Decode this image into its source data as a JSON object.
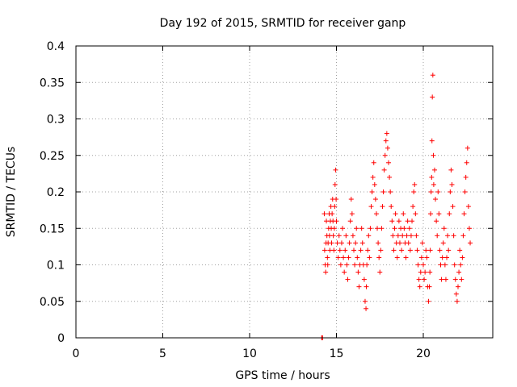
{
  "chart_data": {
    "type": "scatter",
    "title": "Day 192 of 2015, SRMTID for receiver ganp",
    "xlabel": "GPS time / hours",
    "ylabel": "SRMTID / TECUs",
    "xlim": [
      0,
      24
    ],
    "ylim": [
      0,
      0.4
    ],
    "xticks": [
      0,
      5,
      10,
      15,
      20
    ],
    "xtick_labels": [
      "0",
      "5",
      "10",
      "15",
      "20"
    ],
    "yticks": [
      0,
      0.05,
      0.1,
      0.15,
      0.2,
      0.25,
      0.3,
      0.35,
      0.4
    ],
    "ytick_labels": [
      "0",
      "0.05",
      "0.1",
      "0.15",
      "0.2",
      "0.25",
      "0.3",
      "0.35",
      "0.4"
    ],
    "grid": true,
    "marker": "plus",
    "series_color": "#ff0000",
    "series": [
      {
        "name": "SRMTID",
        "points": [
          [
            14.15,
            0.0
          ],
          [
            14.18,
            0.0
          ],
          [
            14.2,
            0.0
          ],
          [
            14.3,
            0.17
          ],
          [
            14.32,
            0.12
          ],
          [
            14.35,
            0.1
          ],
          [
            14.38,
            0.09
          ],
          [
            14.4,
            0.13
          ],
          [
            14.42,
            0.16
          ],
          [
            14.45,
            0.14
          ],
          [
            14.48,
            0.11
          ],
          [
            14.5,
            0.1
          ],
          [
            14.52,
            0.13
          ],
          [
            14.55,
            0.15
          ],
          [
            14.58,
            0.17
          ],
          [
            14.6,
            0.14
          ],
          [
            14.62,
            0.12
          ],
          [
            14.65,
            0.16
          ],
          [
            14.68,
            0.18
          ],
          [
            14.7,
            0.15
          ],
          [
            14.72,
            0.13
          ],
          [
            14.75,
            0.17
          ],
          [
            14.78,
            0.19
          ],
          [
            14.8,
            0.16
          ],
          [
            14.82,
            0.14
          ],
          [
            14.85,
            0.12
          ],
          [
            14.88,
            0.15
          ],
          [
            14.9,
            0.18
          ],
          [
            14.92,
            0.21
          ],
          [
            14.95,
            0.23
          ],
          [
            14.98,
            0.19
          ],
          [
            15.0,
            0.16
          ],
          [
            15.05,
            0.13
          ],
          [
            15.1,
            0.11
          ],
          [
            15.15,
            0.14
          ],
          [
            15.2,
            0.12
          ],
          [
            15.25,
            0.1
          ],
          [
            15.3,
            0.13
          ],
          [
            15.35,
            0.15
          ],
          [
            15.4,
            0.11
          ],
          [
            15.45,
            0.09
          ],
          [
            15.5,
            0.12
          ],
          [
            15.55,
            0.14
          ],
          [
            15.6,
            0.1
          ],
          [
            15.65,
            0.08
          ],
          [
            15.7,
            0.11
          ],
          [
            15.75,
            0.13
          ],
          [
            15.8,
            0.16
          ],
          [
            15.85,
            0.19
          ],
          [
            15.9,
            0.17
          ],
          [
            15.95,
            0.14
          ],
          [
            16.0,
            0.12
          ],
          [
            16.05,
            0.1
          ],
          [
            16.1,
            0.13
          ],
          [
            16.15,
            0.15
          ],
          [
            16.2,
            0.11
          ],
          [
            16.25,
            0.09
          ],
          [
            16.3,
            0.07
          ],
          [
            16.35,
            0.1
          ],
          [
            16.4,
            0.12
          ],
          [
            16.45,
            0.15
          ],
          [
            16.5,
            0.13
          ],
          [
            16.55,
            0.1
          ],
          [
            16.6,
            0.08
          ],
          [
            16.65,
            0.05
          ],
          [
            16.7,
            0.04
          ],
          [
            16.72,
            0.07
          ],
          [
            16.75,
            0.1
          ],
          [
            16.8,
            0.12
          ],
          [
            16.85,
            0.14
          ],
          [
            16.9,
            0.11
          ],
          [
            16.95,
            0.15
          ],
          [
            17.0,
            0.18
          ],
          [
            17.05,
            0.2
          ],
          [
            17.1,
            0.22
          ],
          [
            17.15,
            0.24
          ],
          [
            17.2,
            0.21
          ],
          [
            17.25,
            0.19
          ],
          [
            17.3,
            0.17
          ],
          [
            17.35,
            0.15
          ],
          [
            17.4,
            0.13
          ],
          [
            17.45,
            0.11
          ],
          [
            17.5,
            0.09
          ],
          [
            17.55,
            0.12
          ],
          [
            17.6,
            0.15
          ],
          [
            17.65,
            0.18
          ],
          [
            17.7,
            0.2
          ],
          [
            17.75,
            0.23
          ],
          [
            17.8,
            0.25
          ],
          [
            17.85,
            0.27
          ],
          [
            17.9,
            0.28
          ],
          [
            17.95,
            0.26
          ],
          [
            18.0,
            0.24
          ],
          [
            18.05,
            0.22
          ],
          [
            18.1,
            0.2
          ],
          [
            18.15,
            0.18
          ],
          [
            18.2,
            0.16
          ],
          [
            18.25,
            0.14
          ],
          [
            18.3,
            0.12
          ],
          [
            18.35,
            0.15
          ],
          [
            18.4,
            0.17
          ],
          [
            18.45,
            0.13
          ],
          [
            18.5,
            0.11
          ],
          [
            18.55,
            0.14
          ],
          [
            18.6,
            0.16
          ],
          [
            18.65,
            0.13
          ],
          [
            18.7,
            0.15
          ],
          [
            18.75,
            0.12
          ],
          [
            18.8,
            0.14
          ],
          [
            18.85,
            0.17
          ],
          [
            18.9,
            0.15
          ],
          [
            18.95,
            0.13
          ],
          [
            19.0,
            0.11
          ],
          [
            19.05,
            0.14
          ],
          [
            19.1,
            0.16
          ],
          [
            19.15,
            0.13
          ],
          [
            19.2,
            0.15
          ],
          [
            19.25,
            0.12
          ],
          [
            19.3,
            0.14
          ],
          [
            19.35,
            0.16
          ],
          [
            19.4,
            0.18
          ],
          [
            19.45,
            0.2
          ],
          [
            19.5,
            0.21
          ],
          [
            19.55,
            0.17
          ],
          [
            19.6,
            0.14
          ],
          [
            19.65,
            0.12
          ],
          [
            19.7,
            0.1
          ],
          [
            19.75,
            0.08
          ],
          [
            19.8,
            0.07
          ],
          [
            19.85,
            0.09
          ],
          [
            19.9,
            0.11
          ],
          [
            19.95,
            0.13
          ],
          [
            20.0,
            0.1
          ],
          [
            20.05,
            0.08
          ],
          [
            20.1,
            0.09
          ],
          [
            20.15,
            0.12
          ],
          [
            20.2,
            0.11
          ],
          [
            20.25,
            0.07
          ],
          [
            20.3,
            0.05
          ],
          [
            20.35,
            0.07
          ],
          [
            20.38,
            0.09
          ],
          [
            20.4,
            0.12
          ],
          [
            20.42,
            0.17
          ],
          [
            20.45,
            0.2
          ],
          [
            20.48,
            0.22
          ],
          [
            20.5,
            0.27
          ],
          [
            20.52,
            0.33
          ],
          [
            20.55,
            0.36
          ],
          [
            20.58,
            0.25
          ],
          [
            20.6,
            0.21
          ],
          [
            20.65,
            0.23
          ],
          [
            20.7,
            0.19
          ],
          [
            20.75,
            0.16
          ],
          [
            20.8,
            0.14
          ],
          [
            20.85,
            0.2
          ],
          [
            20.9,
            0.17
          ],
          [
            20.95,
            0.12
          ],
          [
            21.0,
            0.1
          ],
          [
            21.05,
            0.08
          ],
          [
            21.1,
            0.11
          ],
          [
            21.15,
            0.13
          ],
          [
            21.2,
            0.15
          ],
          [
            21.25,
            0.1
          ],
          [
            21.3,
            0.08
          ],
          [
            21.35,
            0.11
          ],
          [
            21.4,
            0.14
          ],
          [
            21.45,
            0.12
          ],
          [
            21.5,
            0.17
          ],
          [
            21.55,
            0.2
          ],
          [
            21.6,
            0.23
          ],
          [
            21.65,
            0.21
          ],
          [
            21.7,
            0.18
          ],
          [
            21.75,
            0.14
          ],
          [
            21.8,
            0.1
          ],
          [
            21.85,
            0.08
          ],
          [
            21.9,
            0.06
          ],
          [
            21.95,
            0.05
          ],
          [
            22.0,
            0.07
          ],
          [
            22.05,
            0.09
          ],
          [
            22.1,
            0.12
          ],
          [
            22.15,
            0.1
          ],
          [
            22.2,
            0.08
          ],
          [
            22.25,
            0.11
          ],
          [
            22.3,
            0.14
          ],
          [
            22.35,
            0.17
          ],
          [
            22.4,
            0.2
          ],
          [
            22.45,
            0.22
          ],
          [
            22.5,
            0.24
          ],
          [
            22.55,
            0.26
          ],
          [
            22.6,
            0.18
          ],
          [
            22.65,
            0.15
          ],
          [
            22.7,
            0.13
          ]
        ]
      }
    ]
  }
}
